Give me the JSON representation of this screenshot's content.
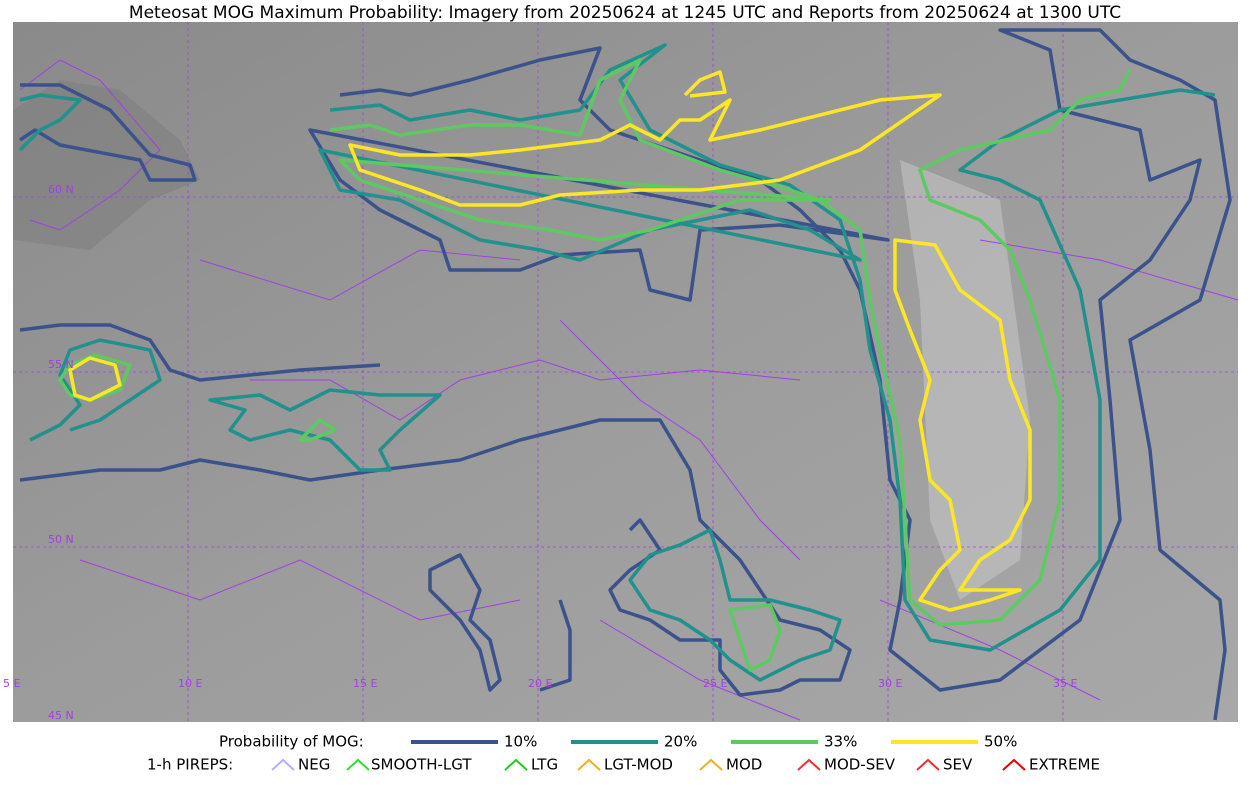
{
  "title": "Meteosat MOG Maximum Probability: Imagery from 20250624 at 1245 UTC and Reports from 20250624 at 1300 UTC",
  "graticule": {
    "lat": [
      "60 N",
      "55 N",
      "50 N",
      "45 N"
    ],
    "lon": [
      "5 E",
      "10 E",
      "15 E",
      "20 E",
      "25 E",
      "30 E",
      "35 E"
    ]
  },
  "legend": {
    "probability": {
      "label": "Probability of MOG:",
      "items": [
        {
          "label": "10%",
          "color": "#3b528b"
        },
        {
          "label": "20%",
          "color": "#21918c"
        },
        {
          "label": "33%",
          "color": "#5ec962"
        },
        {
          "label": "50%",
          "color": "#fde725"
        }
      ]
    },
    "pireps": {
      "label": "1-h PIREPS:",
      "items": [
        {
          "label": "NEG",
          "color": "#b0b0ff"
        },
        {
          "label": "SMOOTH-LGT",
          "color": "#33dd33"
        },
        {
          "label": "LTG",
          "color": "#22cc22"
        },
        {
          "label": "LGT-MOD",
          "color": "#f0b020"
        },
        {
          "label": "MOD",
          "color": "#f0b020"
        },
        {
          "label": "MOD-SEV",
          "color": "#e83030"
        },
        {
          "label": "SEV",
          "color": "#e83030"
        },
        {
          "label": "EXTREME",
          "color": "#e00000"
        }
      ]
    }
  }
}
